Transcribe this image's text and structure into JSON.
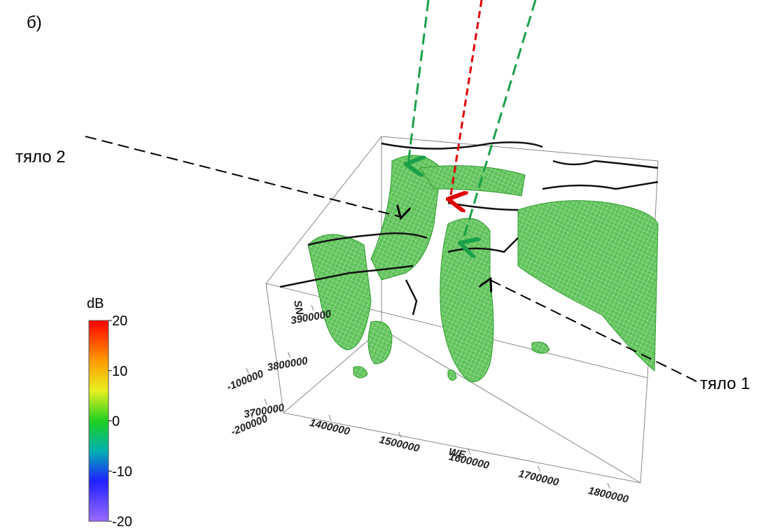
{
  "panel_label": "б)",
  "annotations": [
    "тяло 2",
    "тяло 1"
  ],
  "colorbar": {
    "title": "dB",
    "lim": [
      -20,
      20
    ],
    "ticks": [
      20,
      10,
      0,
      -10,
      -20
    ]
  },
  "axes": {
    "we": {
      "label": "WE",
      "ticks": [
        1400000,
        1500000,
        1600000,
        1700000,
        1800000
      ]
    },
    "sn": {
      "label": "SN",
      "ticks": [
        3700000,
        3800000,
        3900000
      ]
    },
    "z": {
      "ticks": [
        -100000,
        -200000
      ]
    }
  }
}
